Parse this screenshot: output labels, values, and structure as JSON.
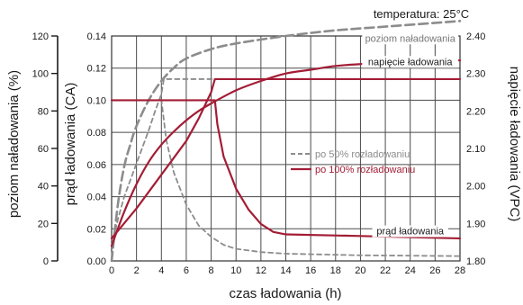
{
  "chart_data": {
    "type": "line",
    "temperature_note": "temperatura: 25°C",
    "xlabel": "czas ładowania (h)",
    "xlim": [
      0,
      28
    ],
    "x_ticks": [
      0,
      2,
      4,
      6,
      8,
      10,
      12,
      14,
      16,
      18,
      20,
      22,
      24,
      26,
      28
    ],
    "axes": {
      "charge_level": {
        "label": "poziom naładowania (%)",
        "side": "left-outer",
        "range": [
          0,
          120
        ],
        "ticks": [
          0,
          20,
          40,
          60,
          80,
          100,
          120
        ]
      },
      "current": {
        "label": "prąd ładowania (CA)",
        "side": "left-inner",
        "range": [
          0,
          0.14
        ],
        "ticks": [
          "0.00",
          "0.02",
          "0.04",
          "0.06",
          "0.08",
          "0.10",
          "0.12",
          "0.14"
        ]
      },
      "voltage": {
        "label": "napięcie ładowania (VPC)",
        "side": "right",
        "range": [
          1.8,
          2.4
        ],
        "ticks": [
          "1.80",
          "1.90",
          "2.00",
          "2.10",
          "2.20",
          "2.30",
          "2.40"
        ]
      }
    },
    "curve_labels": [
      {
        "text": "poziom naładowania",
        "at": [
          24,
          0.1365
        ],
        "color": "#777777"
      },
      {
        "text": "napięcie ładowania",
        "at": [
          24,
          0.1219
        ],
        "color": "#1a1a1a"
      },
      {
        "text": "prąd ładowania",
        "at": [
          24,
          0.0165
        ],
        "color": "#1a1a1a"
      }
    ],
    "legend": {
      "position": "middle-right",
      "entries": [
        {
          "label": "po 50% rozładowaniu",
          "style": "dashed",
          "color": "#8c8c8c"
        },
        {
          "label": "po 100% rozładowaniu",
          "style": "solid",
          "color": "#a31d35"
        }
      ]
    },
    "grid": true,
    "series": [
      {
        "group": "po 50% rozładowaniu",
        "quantity": "charge_level",
        "axis": "charge_level",
        "color": "#8c8c8c",
        "dash": "10,5",
        "width": 2.6,
        "points": [
          [
            0,
            0
          ],
          [
            0.5,
            30
          ],
          [
            1,
            50
          ],
          [
            1.5,
            62
          ],
          [
            2,
            72
          ],
          [
            3,
            86
          ],
          [
            4,
            96
          ],
          [
            5,
            103
          ],
          [
            6,
            108
          ],
          [
            8,
            113
          ],
          [
            10,
            116
          ],
          [
            14,
            120
          ],
          [
            18,
            123
          ],
          [
            22,
            125
          ],
          [
            26,
            127
          ],
          [
            28,
            128
          ]
        ]
      },
      {
        "group": "po 50% rozładowaniu",
        "quantity": "voltage",
        "axis": "voltage",
        "color": "#8c8c8c",
        "dash": "5,4",
        "width": 1.8,
        "points": [
          [
            0,
            1.84
          ],
          [
            0.5,
            1.91
          ],
          [
            1,
            1.97
          ],
          [
            2,
            2.06
          ],
          [
            3,
            2.15
          ],
          [
            3.5,
            2.2
          ],
          [
            4,
            2.245
          ],
          [
            4.2,
            2.285
          ],
          [
            28,
            2.285
          ]
        ]
      },
      {
        "group": "po 50% rozładowaniu",
        "quantity": "current",
        "axis": "current",
        "color": "#8c8c8c",
        "dash": "5,4",
        "width": 1.8,
        "points": [
          [
            0,
            0.1
          ],
          [
            4,
            0.1
          ],
          [
            4.4,
            0.075
          ],
          [
            5,
            0.055
          ],
          [
            6,
            0.035
          ],
          [
            7,
            0.022
          ],
          [
            8,
            0.015
          ],
          [
            9,
            0.01
          ],
          [
            10,
            0.0075
          ],
          [
            12,
            0.0055
          ],
          [
            14,
            0.0045
          ],
          [
            20,
            0.0035
          ],
          [
            28,
            0.003
          ]
        ]
      },
      {
        "group": "po 100% rozładowaniu",
        "quantity": "charge_level",
        "axis": "charge_level",
        "color": "#a31d35",
        "dash": "",
        "width": 2.2,
        "points": [
          [
            0,
            8
          ],
          [
            1,
            26
          ],
          [
            2,
            41
          ],
          [
            3,
            53
          ],
          [
            4,
            62
          ],
          [
            5,
            69
          ],
          [
            6,
            75
          ],
          [
            7,
            80
          ],
          [
            8,
            84
          ],
          [
            10,
            91
          ],
          [
            12,
            96
          ],
          [
            14,
            100
          ],
          [
            16,
            102
          ],
          [
            18,
            104
          ],
          [
            20,
            105
          ],
          [
            22,
            105.5
          ],
          [
            24,
            106
          ],
          [
            26,
            106.5
          ],
          [
            28,
            107
          ]
        ]
      },
      {
        "group": "po 100% rozładowaniu",
        "quantity": "voltage",
        "axis": "voltage",
        "color": "#a31d35",
        "dash": "",
        "width": 2.2,
        "points": [
          [
            0,
            1.86
          ],
          [
            2,
            1.94
          ],
          [
            4,
            2.03
          ],
          [
            6,
            2.12
          ],
          [
            7,
            2.18
          ],
          [
            8,
            2.25
          ],
          [
            8.3,
            2.285
          ],
          [
            28,
            2.285
          ]
        ]
      },
      {
        "group": "po 100% rozładowaniu",
        "quantity": "current",
        "axis": "current",
        "color": "#a31d35",
        "dash": "",
        "width": 2.2,
        "points": [
          [
            0,
            0.1
          ],
          [
            8.3,
            0.1
          ],
          [
            8.5,
            0.085
          ],
          [
            9,
            0.065
          ],
          [
            10,
            0.045
          ],
          [
            11,
            0.032
          ],
          [
            12,
            0.023
          ],
          [
            13,
            0.018
          ],
          [
            14,
            0.0165
          ],
          [
            20,
            0.0155
          ],
          [
            28,
            0.014
          ]
        ]
      }
    ]
  }
}
